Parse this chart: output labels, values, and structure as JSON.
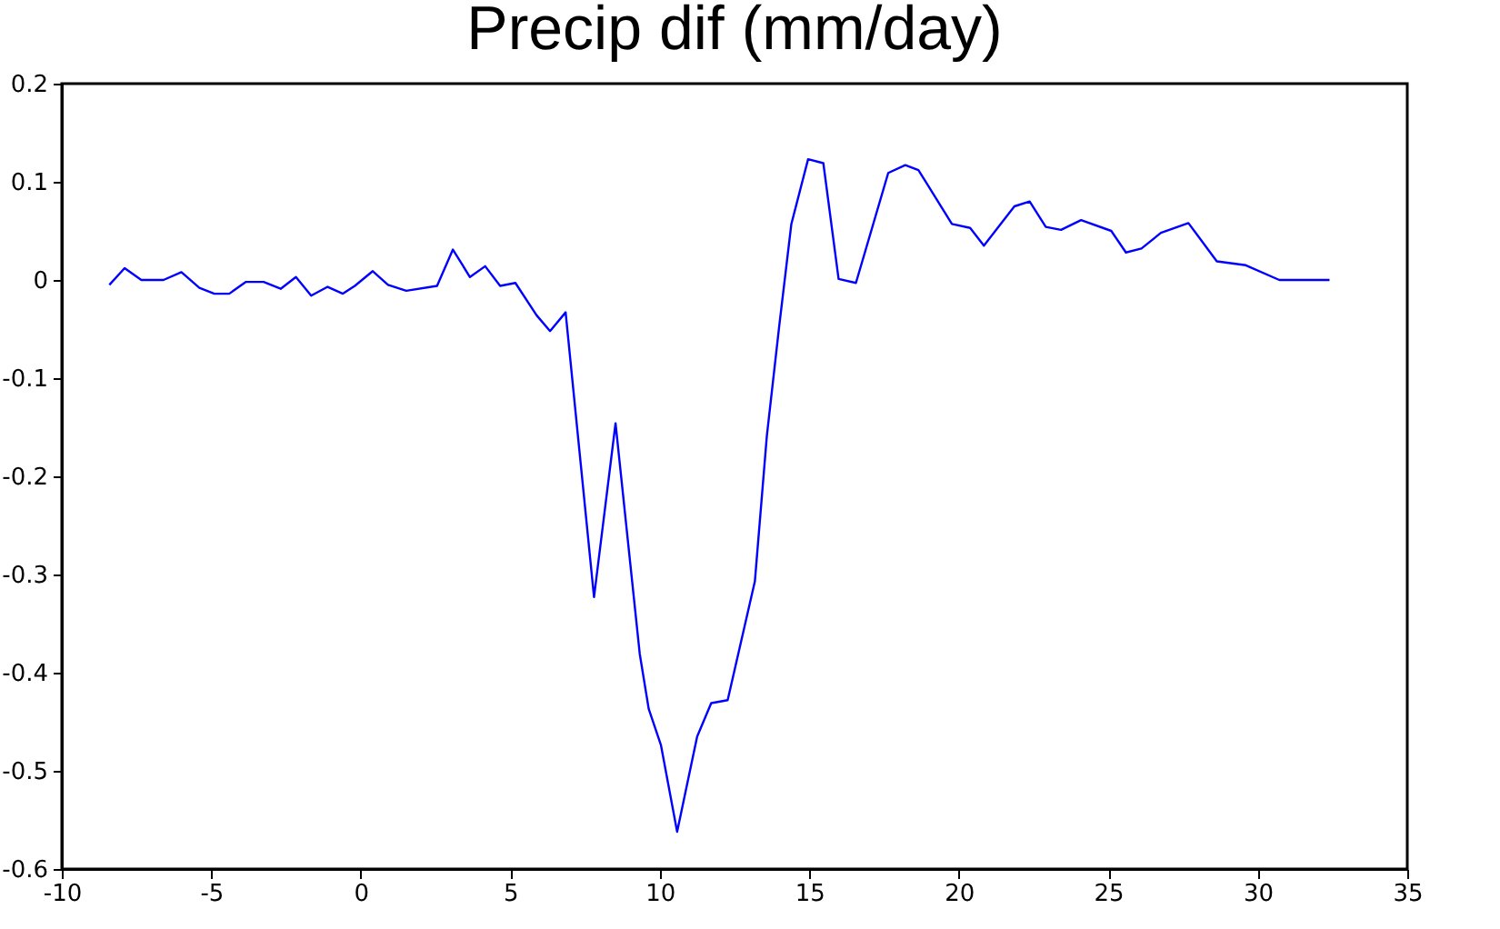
{
  "chart_data": {
    "type": "line",
    "title": "Precip dif (mm/day)",
    "x": [
      -8.41,
      -7.9,
      -7.34,
      -6.6,
      -6.0,
      -5.4,
      -4.9,
      -4.4,
      -3.85,
      -3.25,
      -2.68,
      -2.17,
      -1.66,
      -1.11,
      -0.6,
      -0.2,
      0.4,
      0.91,
      1.52,
      2.55,
      3.08,
      3.65,
      4.16,
      4.66,
      5.17,
      5.88,
      6.33,
      6.85,
      7.8,
      8.52,
      9.33,
      9.63,
      10.04,
      10.58,
      11.25,
      11.72,
      12.27,
      13.18,
      13.58,
      13.99,
      14.4,
      14.96,
      15.47,
      15.98,
      16.56,
      17.64,
      18.21,
      18.65,
      19.77,
      20.38,
      20.84,
      21.86,
      22.37,
      22.91,
      23.42,
      24.09,
      25.1,
      25.59,
      26.11,
      26.76,
      27.68,
      28.63,
      29.6,
      30.72,
      32.4
    ],
    "series": [
      {
        "color": "#0000ff",
        "values": [
          -0.005,
          0.012,
          0,
          0,
          0.008,
          -0.008,
          -0.014,
          -0.014,
          -0.002,
          -0.002,
          -0.009,
          0.003,
          -0.016,
          -0.007,
          -0.014,
          -0.006,
          0.009,
          -0.005,
          -0.011,
          -0.006,
          0.031,
          0.003,
          0.014,
          -0.006,
          -0.003,
          -0.036,
          -0.052,
          -0.033,
          -0.323,
          -0.146,
          -0.381,
          -0.437,
          -0.474,
          -0.562,
          -0.465,
          -0.431,
          -0.428,
          -0.307,
          -0.159,
          -0.048,
          0.057,
          0.123,
          0.119,
          0.001,
          -0.003,
          0.109,
          0.117,
          0.112,
          0.057,
          0.053,
          0.035,
          0.075,
          0.08,
          0.054,
          0.051,
          0.061,
          0.05,
          0.028,
          0.032,
          0.048,
          0.058,
          0.019,
          0.015,
          0,
          0
        ]
      }
    ],
    "xlim": [
      -10,
      35
    ],
    "xticks": [
      -10,
      -5,
      0,
      5,
      10,
      15,
      20,
      25,
      30,
      35
    ],
    "ylim": [
      -0.6,
      0.2
    ],
    "yticks": [
      -0.6,
      -0.5,
      -0.4,
      -0.3,
      -0.2,
      -0.1,
      0,
      0.1,
      0.2
    ],
    "grid": false,
    "legend": false,
    "marker": "none",
    "line_style": "solid"
  }
}
